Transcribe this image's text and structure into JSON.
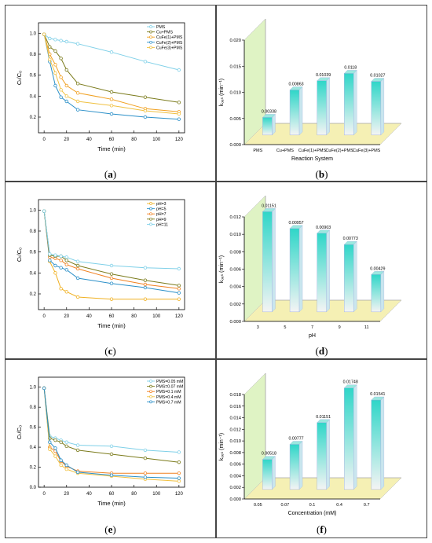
{
  "colors": {
    "a": [
      "#7fd0e8",
      "#7a7a1a",
      "#f0a020",
      "#2a8fc8",
      "#f0c040"
    ],
    "c": [
      "#f0b020",
      "#2a8fc8",
      "#f08020",
      "#7a7a1a",
      "#7fd0e8"
    ],
    "e": [
      "#7fd0e8",
      "#7a7a1a",
      "#f08020",
      "#f0c040",
      "#2a8fc8"
    ],
    "bar_top": "#2fd6c8",
    "bar_bottom": "#f4f4f4",
    "floor": "#f5f0b4",
    "wall": "#dff3c4"
  },
  "chart_data": [
    {
      "id": "a",
      "caption": "a",
      "type": "line",
      "xlabel": "Time (min)",
      "ylabel": "Cₜ/C₀",
      "xlim": [
        -5,
        125
      ],
      "ylim": [
        0.05,
        1.1
      ],
      "xticks": [
        0,
        20,
        40,
        60,
        80,
        100,
        120
      ],
      "yticks": [
        0.2,
        0.4,
        0.6,
        0.8,
        1.0
      ],
      "xtick_labels": [
        "0",
        "20",
        "40",
        "60",
        "80",
        "100",
        "120"
      ],
      "ytick_labels": [
        "0.2",
        "0.4",
        "0.6",
        "0.8",
        "1.0"
      ],
      "legend": "top-right",
      "x": [
        0,
        5,
        10,
        15,
        20,
        30,
        60,
        90,
        120
      ],
      "series": [
        {
          "name": "PMS",
          "values": [
            0.99,
            0.95,
            0.94,
            0.93,
            0.92,
            0.9,
            0.82,
            0.73,
            0.65
          ]
        },
        {
          "name": "Cu+PMS",
          "values": [
            0.99,
            0.87,
            0.83,
            0.76,
            0.65,
            0.52,
            0.44,
            0.39,
            0.34
          ]
        },
        {
          "name": "CuFe(1)+PMS",
          "values": [
            0.99,
            0.8,
            0.7,
            0.58,
            0.5,
            0.43,
            0.37,
            0.28,
            0.25
          ]
        },
        {
          "name": "CuFe(2)+PMS",
          "values": [
            0.99,
            0.73,
            0.5,
            0.39,
            0.35,
            0.27,
            0.23,
            0.2,
            0.18
          ]
        },
        {
          "name": "CuFe(3)+PMS",
          "values": [
            0.99,
            0.75,
            0.62,
            0.46,
            0.4,
            0.35,
            0.31,
            0.26,
            0.23
          ]
        }
      ]
    },
    {
      "id": "b",
      "caption": "b",
      "type": "bar",
      "xlabel": "Reaction System",
      "ylabel": "kₒₑₛ (min⁻¹)",
      "ylim": [
        0,
        0.02
      ],
      "yticks": [
        0,
        0.005,
        0.01,
        0.015,
        0.02
      ],
      "ytick_labels": [
        "0.000",
        "0.005",
        "0.010",
        "0.015",
        "0.020"
      ],
      "categories": [
        "PMS",
        "Cu+PMS",
        "CuFe(1)+PMS",
        "CuFe(2)+PMS",
        "CuFe(3)+PMS"
      ],
      "values": [
        0.00338,
        0.00863,
        0.01039,
        0.0118,
        0.01027
      ],
      "value_labels": [
        "0.00338",
        "0.00863",
        "0.01039",
        "0.0118",
        "0.01027"
      ]
    },
    {
      "id": "c",
      "caption": "c",
      "type": "line",
      "xlabel": "Time (min)",
      "ylabel": "Cₜ/C₀",
      "xlim": [
        -5,
        125
      ],
      "ylim": [
        0.05,
        1.1
      ],
      "xticks": [
        0,
        20,
        40,
        60,
        80,
        100,
        120
      ],
      "yticks": [
        0.2,
        0.4,
        0.6,
        0.8,
        1.0
      ],
      "xtick_labels": [
        "0",
        "20",
        "40",
        "60",
        "80",
        "100",
        "120"
      ],
      "ytick_labels": [
        "0.2",
        "0.4",
        "0.6",
        "0.8",
        "1.0"
      ],
      "legend": "top-right",
      "x": [
        0,
        5,
        10,
        15,
        20,
        30,
        60,
        90,
        120
      ],
      "series": [
        {
          "name": "pH=3",
          "values": [
            0.99,
            0.51,
            0.4,
            0.25,
            0.22,
            0.17,
            0.15,
            0.15,
            0.15
          ]
        },
        {
          "name": "pH=5",
          "values": [
            0.99,
            0.52,
            0.47,
            0.45,
            0.43,
            0.35,
            0.3,
            0.26,
            0.21
          ]
        },
        {
          "name": "pH=7",
          "values": [
            0.99,
            0.55,
            0.54,
            0.52,
            0.48,
            0.44,
            0.35,
            0.29,
            0.25
          ]
        },
        {
          "name": "pH=9",
          "values": [
            0.99,
            0.57,
            0.56,
            0.56,
            0.52,
            0.47,
            0.39,
            0.33,
            0.28
          ]
        },
        {
          "name": "pH=11",
          "values": [
            0.99,
            0.58,
            0.57,
            0.56,
            0.55,
            0.51,
            0.47,
            0.45,
            0.44
          ]
        }
      ]
    },
    {
      "id": "d",
      "caption": "d",
      "type": "bar",
      "xlabel": "pH",
      "ylabel": "kₒₑₛ (min⁻¹)",
      "ylim": [
        0,
        0.012
      ],
      "yticks": [
        0,
        0.002,
        0.004,
        0.006,
        0.008,
        0.01,
        0.012
      ],
      "ytick_labels": [
        "0.000",
        "0.002",
        "0.004",
        "0.006",
        "0.008",
        "0.010",
        "0.012"
      ],
      "categories": [
        "3",
        "5",
        "7",
        "9",
        "11"
      ],
      "values": [
        0.01151,
        0.00957,
        0.00903,
        0.00773,
        0.00429
      ],
      "value_labels": [
        "0.01151",
        "0.00957",
        "0.00903",
        "0.00773",
        "0.00429"
      ]
    },
    {
      "id": "e",
      "caption": "e",
      "type": "line",
      "xlabel": "Time (min)",
      "ylabel": "Cₜ/C₀",
      "xlim": [
        -5,
        125
      ],
      "ylim": [
        0.0,
        1.1
      ],
      "xticks": [
        0,
        20,
        40,
        60,
        80,
        100,
        120
      ],
      "yticks": [
        0.0,
        0.2,
        0.4,
        0.6,
        0.8,
        1.0
      ],
      "xtick_labels": [
        "0",
        "20",
        "40",
        "60",
        "80",
        "100",
        "120"
      ],
      "ytick_labels": [
        "0.0",
        "0.2",
        "0.4",
        "0.6",
        "0.8",
        "1.0"
      ],
      "legend": "top-right",
      "x": [
        0,
        5,
        10,
        15,
        20,
        30,
        60,
        90,
        120
      ],
      "series": [
        {
          "name": "PMS=0.05 mM",
          "values": [
            0.99,
            0.51,
            0.49,
            0.47,
            0.45,
            0.42,
            0.41,
            0.37,
            0.35
          ]
        },
        {
          "name": "PMS=0.07 mM",
          "values": [
            0.99,
            0.49,
            0.47,
            0.45,
            0.41,
            0.37,
            0.33,
            0.29,
            0.25
          ]
        },
        {
          "name": "PMS=0.1 mM",
          "values": [
            0.99,
            0.4,
            0.36,
            0.26,
            0.21,
            0.16,
            0.14,
            0.14,
            0.14
          ]
        },
        {
          "name": "PMS=0.4 mM",
          "values": [
            0.99,
            0.38,
            0.31,
            0.22,
            0.18,
            0.14,
            0.11,
            0.08,
            0.06
          ]
        },
        {
          "name": "PMS=0.7 mM",
          "values": [
            0.99,
            0.45,
            0.39,
            0.27,
            0.22,
            0.15,
            0.12,
            0.1,
            0.09
          ]
        }
      ]
    },
    {
      "id": "f",
      "caption": "f",
      "type": "bar",
      "xlabel": "Concentration (mM)",
      "ylabel": "kₒₑₛ (min⁻¹)",
      "ylim": [
        0,
        0.018
      ],
      "yticks": [
        0,
        0.002,
        0.004,
        0.006,
        0.008,
        0.01,
        0.012,
        0.014,
        0.016,
        0.018
      ],
      "ytick_labels": [
        "0.000",
        "0.002",
        "0.004",
        "0.006",
        "0.008",
        "0.010",
        "0.012",
        "0.014",
        "0.016",
        "0.018"
      ],
      "categories": [
        "0.05",
        "0.07",
        "0.1",
        "0.4",
        "0.7"
      ],
      "values": [
        0.00518,
        0.00777,
        0.01151,
        0.01748,
        0.01541
      ],
      "value_labels": [
        "0.00518",
        "0.00777",
        "0.01151",
        "0.01748",
        "0.01541"
      ]
    }
  ]
}
